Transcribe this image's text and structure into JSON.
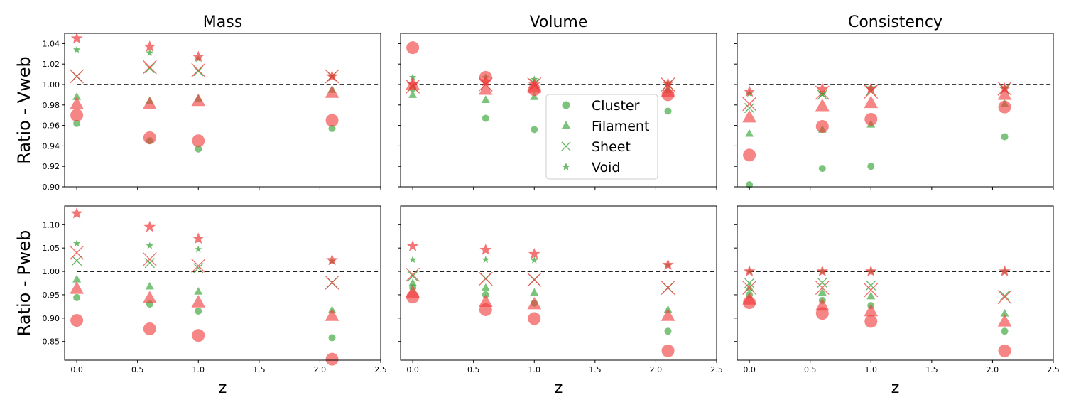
{
  "colors": {
    "green": "#2ca02c",
    "red": "#f03a3a",
    "dark_green": "#1f7a1f"
  },
  "legend": {
    "position": "inside panel Volume (top row)",
    "entries": [
      {
        "label": "Cluster",
        "marker": "circle"
      },
      {
        "label": "Filament",
        "marker": "triangle"
      },
      {
        "label": "Sheet",
        "marker": "x"
      },
      {
        "label": "Void",
        "marker": "star"
      }
    ]
  },
  "chart_data": {
    "type": "scatter",
    "layout": "2 rows x 3 columns",
    "column_titles": [
      "Mass",
      "Volume",
      "Consistency"
    ],
    "row_labels": [
      "Ratio - Vweb",
      "Ratio - Pweb"
    ],
    "xlabel": "z",
    "xlim": [
      -0.1,
      2.5
    ],
    "xticks": [
      0.0,
      0.5,
      1.0,
      1.5,
      2.0,
      2.5
    ],
    "xtick_labels": [
      "0.0",
      "0.5",
      "1.0",
      "1.5",
      "2.0",
      "2.5"
    ],
    "reference_line": 1.0,
    "x": [
      0.0,
      0.6,
      1.0,
      2.1
    ],
    "rows": [
      {
        "ylim": [
          0.9,
          1.05
        ],
        "yticks": [
          0.9,
          0.92,
          0.94,
          0.96,
          0.98,
          1.0,
          1.02,
          1.04
        ],
        "ytick_labels": [
          "0.90",
          "0.92",
          "0.94",
          "0.96",
          "0.98",
          "1.00",
          "1.02",
          "1.04"
        ],
        "panels": [
          {
            "title": "Mass",
            "series": {
              "green": {
                "Cluster": [
                  0.962,
                  0.945,
                  0.937,
                  0.957
                ],
                "Filament": [
                  0.988,
                  0.984,
                  0.986,
                  0.995
                ],
                "Sheet": [
                  1.008,
                  1.016,
                  1.013,
                  1.008
                ],
                "Void": [
                  1.034,
                  1.031,
                  1.025,
                  1.008
                ]
              },
              "red": {
                "Cluster": [
                  0.97,
                  0.948,
                  0.945,
                  0.965
                ],
                "Filament": [
                  0.981,
                  0.981,
                  0.984,
                  0.992
                ],
                "Sheet": [
                  1.008,
                  1.017,
                  1.014,
                  1.008
                ],
                "Void": [
                  1.045,
                  1.037,
                  1.027,
                  1.008
                ]
              }
            }
          },
          {
            "title": "Volume",
            "series": {
              "green": {
                "Cluster": [
                  0.996,
                  0.967,
                  0.956,
                  0.974
                ],
                "Filament": [
                  0.99,
                  0.985,
                  0.988,
                  0.995
                ],
                "Sheet": [
                  0.998,
                  1.0,
                  1.001,
                  1.0
                ],
                "Void": [
                  1.007,
                  1.007,
                  1.005,
                  1.001
                ]
              },
              "red": {
                "Cluster": [
                  1.036,
                  1.007,
                  0.995,
                  0.99
                ],
                "Filament": [
                  1.0,
                  0.995,
                  0.997,
                  0.993
                ],
                "Sheet": [
                  0.998,
                  1.0,
                  1.0,
                  1.0
                ],
                "Void": [
                  1.0,
                  1.003,
                  1.0,
                  1.001
                ]
              }
            }
          },
          {
            "title": "Consistency",
            "series": {
              "green": {
                "Cluster": [
                  0.902,
                  0.918,
                  0.92,
                  0.949
                ],
                "Filament": [
                  0.952,
                  0.956,
                  0.961,
                  0.981
                ],
                "Sheet": [
                  0.977,
                  0.99,
                  0.994,
                  0.995
                ],
                "Void": [
                  0.991,
                  0.991,
                  0.997,
                  0.996
                ]
              },
              "red": {
                "Cluster": [
                  0.931,
                  0.959,
                  0.966,
                  0.978
                ],
                "Filament": [
                  0.968,
                  0.979,
                  0.982,
                  0.99
                ],
                "Sheet": [
                  0.981,
                  0.992,
                  0.993,
                  0.996
                ],
                "Void": [
                  0.993,
                  0.996,
                  0.996,
                  0.996
                ]
              }
            }
          }
        ]
      },
      {
        "ylim": [
          0.81,
          1.14
        ],
        "yticks": [
          0.85,
          0.9,
          0.95,
          1.0,
          1.05,
          1.1
        ],
        "ytick_labels": [
          "0.85",
          "0.90",
          "0.95",
          "1.00",
          "1.05",
          "1.10"
        ],
        "panels": [
          {
            "title": "Mass",
            "series": {
              "green": {
                "Cluster": [
                  0.944,
                  0.93,
                  0.915,
                  0.858
                ],
                "Filament": [
                  0.983,
                  0.968,
                  0.957,
                  0.917
                ],
                "Sheet": [
                  1.023,
                  1.018,
                  1.007,
                  0.976
                ],
                "Void": [
                  1.06,
                  1.055,
                  1.047,
                  1.022
                ]
              },
              "red": {
                "Cluster": [
                  0.895,
                  0.877,
                  0.863,
                  0.812
                ],
                "Filament": [
                  0.963,
                  0.943,
                  0.934,
                  0.905
                ],
                "Sheet": [
                  1.04,
                  1.026,
                  1.012,
                  0.976
                ],
                "Void": [
                  1.124,
                  1.095,
                  1.07,
                  1.024
                ]
              }
            }
          },
          {
            "title": "Volume",
            "series": {
              "green": {
                "Cluster": [
                  0.965,
                  0.95,
                  0.932,
                  0.872
                ],
                "Filament": [
                  0.975,
                  0.965,
                  0.955,
                  0.918
                ],
                "Sheet": [
                  0.99,
                  0.985,
                  0.982,
                  0.965
                ],
                "Void": [
                  1.025,
                  1.025,
                  1.024,
                  1.014
                ]
              },
              "red": {
                "Cluster": [
                  0.945,
                  0.918,
                  0.899,
                  0.83
                ],
                "Filament": [
                  0.955,
                  0.935,
                  0.93,
                  0.905
                ],
                "Sheet": [
                  0.993,
                  0.984,
                  0.982,
                  0.965
                ],
                "Void": [
                  1.054,
                  1.046,
                  1.037,
                  1.014
                ]
              }
            }
          },
          {
            "title": "Consistency",
            "series": {
              "green": {
                "Cluster": [
                  0.95,
                  0.938,
                  0.927,
                  0.872
                ],
                "Filament": [
                  0.965,
                  0.955,
                  0.947,
                  0.91
                ],
                "Sheet": [
                  0.975,
                  0.976,
                  0.97,
                  0.948
                ],
                "Void": [
                  1.0,
                  1.0,
                  1.0,
                  1.0
                ]
              },
              "red": {
                "Cluster": [
                  0.933,
                  0.91,
                  0.893,
                  0.83
                ],
                "Filament": [
                  0.94,
                  0.927,
                  0.915,
                  0.893
                ],
                "Sheet": [
                  0.965,
                  0.965,
                  0.96,
                  0.945
                ],
                "Void": [
                  1.0,
                  1.0,
                  1.0,
                  1.0
                ]
              }
            }
          }
        ]
      }
    ]
  }
}
